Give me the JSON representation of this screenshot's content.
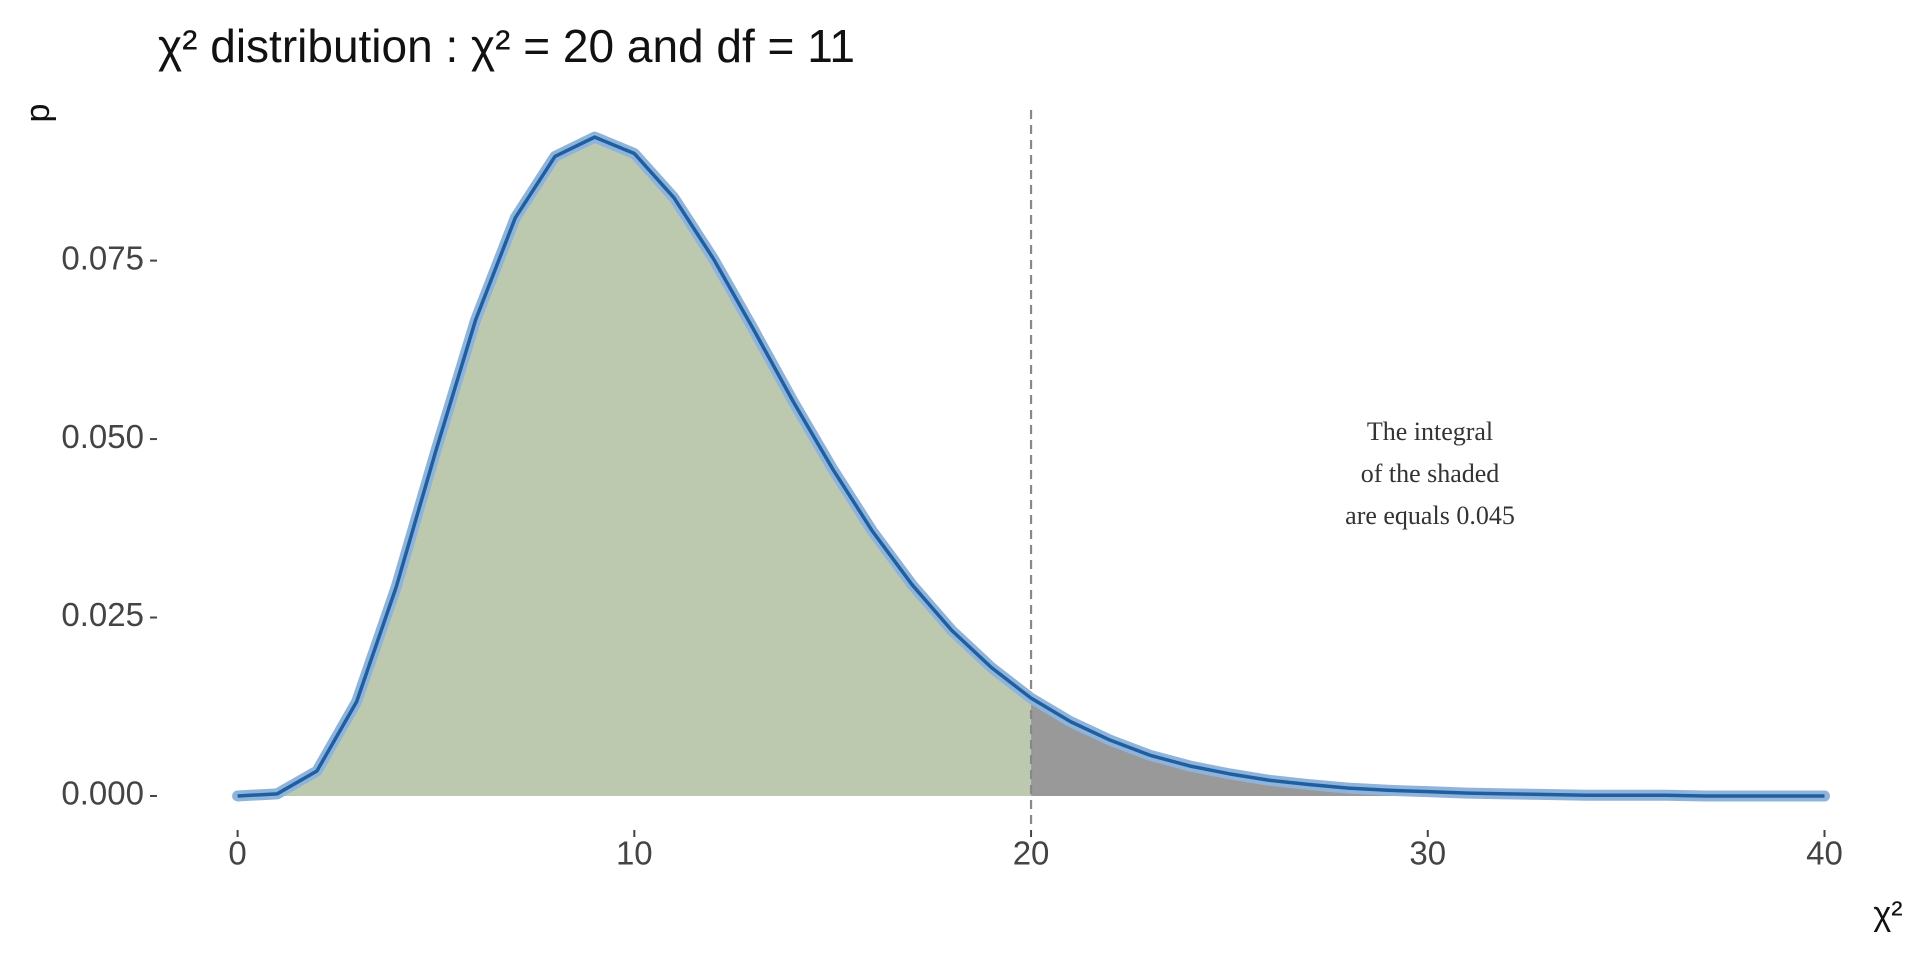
{
  "chart_data": {
    "type": "area",
    "title": "χ² distribution :  χ² = 20 and df = 11",
    "x_label": "χ²",
    "y_label": "p",
    "x": [
      0,
      1,
      2,
      3,
      4,
      5,
      6,
      7,
      8,
      9,
      10,
      11,
      12,
      13,
      14,
      15,
      16,
      17,
      18,
      19,
      20,
      21,
      22,
      23,
      24,
      25,
      26,
      27,
      28,
      29,
      30,
      31,
      32,
      33,
      34,
      35,
      36,
      37,
      38,
      39,
      40
    ],
    "values": [
      0,
      0.0003,
      0.0035,
      0.0132,
      0.0293,
      0.0484,
      0.0667,
      0.081,
      0.0896,
      0.0923,
      0.09,
      0.0838,
      0.0752,
      0.0654,
      0.0553,
      0.0458,
      0.0371,
      0.0296,
      0.0232,
      0.018,
      0.0137,
      0.0104,
      0.0078,
      0.0057,
      0.0042,
      0.0031,
      0.0022,
      0.0016,
      0.0011,
      0.0008,
      0.0006,
      0.0004,
      0.0003,
      0.0002,
      0.0001,
      0.0001,
      0.0001,
      0,
      0,
      0,
      0
    ],
    "threshold": 20,
    "color": "#1f5fa0",
    "halo_color": "#8fb4dc",
    "below_color": "#bdc9af",
    "above_color": "#999999",
    "annotation": [
      "The integral",
      "of the  shaded",
      "are equals 0.045"
    ],
    "xlim": [
      0,
      40
    ],
    "ylim": [
      -0.0046,
      0.0961
    ],
    "xticks": [
      0,
      10,
      20,
      30,
      40
    ],
    "yticks": [
      {
        "value": 0,
        "label": "0.000"
      },
      {
        "value": 0.025,
        "label": "0.025"
      },
      {
        "value": 0.05,
        "label": "0.050"
      },
      {
        "value": 0.075,
        "label": "0.075"
      }
    ]
  }
}
